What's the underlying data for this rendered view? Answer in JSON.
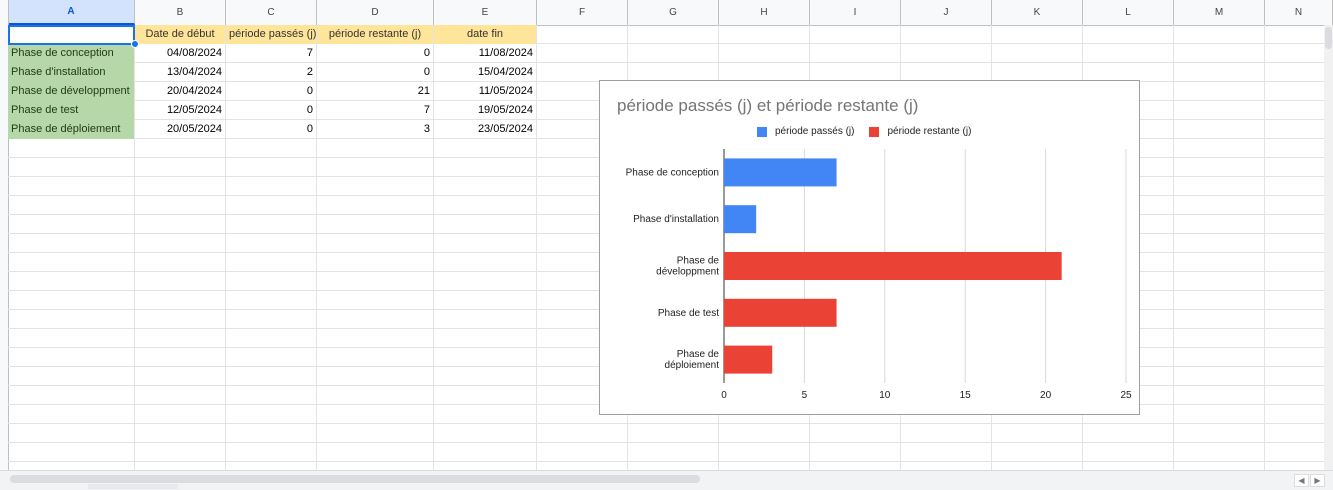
{
  "columns": [
    "A",
    "B",
    "C",
    "D",
    "E",
    "F",
    "G",
    "H",
    "I",
    "J",
    "K",
    "L",
    "M",
    "N"
  ],
  "active_column": "A",
  "table": {
    "headers": [
      "",
      "Date de début",
      "période passés (j)",
      "période restante (j)",
      "date fin"
    ],
    "rows": [
      {
        "phase": "Phase de conception",
        "start": "04/08/2024",
        "passed": "7",
        "remaining": "0",
        "end": "11/08/2024"
      },
      {
        "phase": "Phase d'installation",
        "start": "13/04/2024",
        "passed": "2",
        "remaining": "0",
        "end": "15/04/2024"
      },
      {
        "phase": "Phase de développment",
        "start": "20/04/2024",
        "passed": "0",
        "remaining": "21",
        "end": "11/05/2024"
      },
      {
        "phase": "Phase de test",
        "start": "12/05/2024",
        "passed": "0",
        "remaining": "7",
        "end": "19/05/2024"
      },
      {
        "phase": "Phase de déploiement",
        "start": "20/05/2024",
        "passed": "0",
        "remaining": "3",
        "end": "23/05/2024"
      }
    ]
  },
  "colors": {
    "passed": "#4285f4",
    "remaining": "#ea4335",
    "header_fill": "#ffe599",
    "phase_fill": "#b6d7a8"
  },
  "chart_data": {
    "type": "bar",
    "orientation": "horizontal",
    "stacked": true,
    "title": "période passés (j) et période restante (j)",
    "categories": [
      "Phase de conception",
      "Phase d'installation",
      "Phase de développment",
      "Phase de test",
      "Phase de déploiement"
    ],
    "category_labels": [
      [
        "Phase de conception"
      ],
      [
        "Phase d'installation"
      ],
      [
        "Phase de",
        "développment"
      ],
      [
        "Phase de test"
      ],
      [
        "Phase de",
        "déploiement"
      ]
    ],
    "series": [
      {
        "name": "période passés (j)",
        "values": [
          7,
          2,
          0,
          0,
          0
        ],
        "color": "#4285f4"
      },
      {
        "name": "période restante (j)",
        "values": [
          0,
          0,
          21,
          7,
          3
        ],
        "color": "#ea4335"
      }
    ],
    "xlim": [
      0,
      25
    ],
    "xticks": [
      0,
      5,
      10,
      15,
      20,
      25
    ],
    "grid": true,
    "legend_position": "top"
  }
}
